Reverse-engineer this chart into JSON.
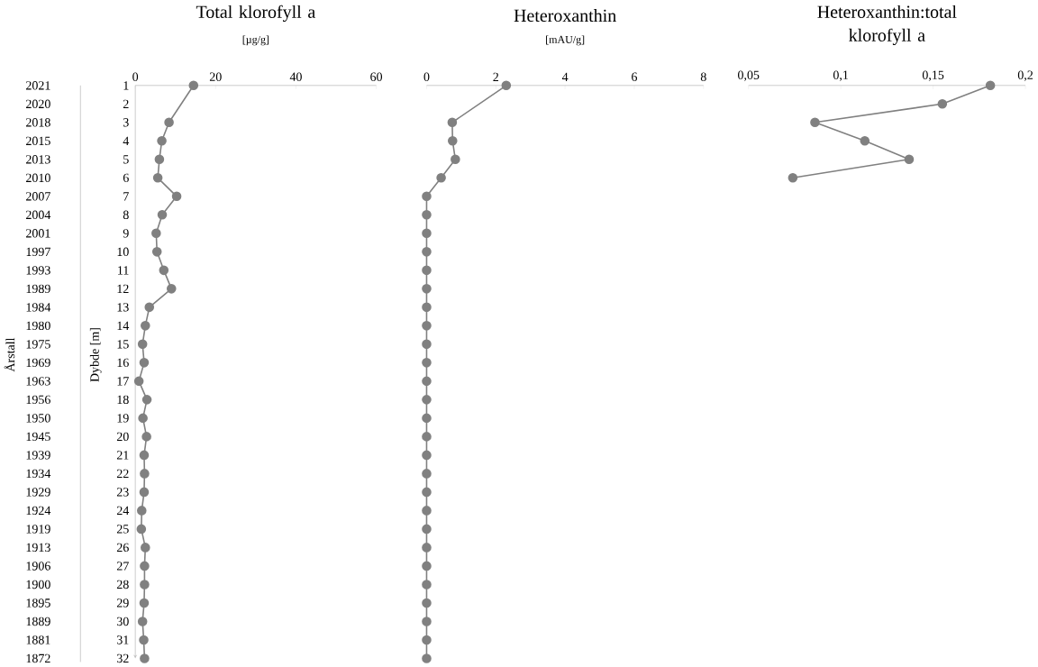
{
  "chart_data": [
    {
      "type": "line",
      "orientation": "horizontal",
      "title": "Total klorofyll a",
      "subtitle": "[µg/g]",
      "ylabel": "Dybde [m]",
      "y2label": "Årstall",
      "categories": [
        "1",
        "2",
        "3",
        "4",
        "5",
        "6",
        "7",
        "8",
        "9",
        "10",
        "11",
        "12",
        "13",
        "14",
        "15",
        "16",
        "17",
        "18",
        "19",
        "20",
        "21",
        "22",
        "23",
        "24",
        "25",
        "26",
        "27",
        "28",
        "29",
        "30",
        "31",
        "32"
      ],
      "y2_categories": [
        "2021",
        "2020",
        "2018",
        "2015",
        "2013",
        "2010",
        "2007",
        "2004",
        "2001",
        "1997",
        "1993",
        "1989",
        "1984",
        "1980",
        "1975",
        "1969",
        "1963",
        "1956",
        "1950",
        "1945",
        "1939",
        "1934",
        "1929",
        "1924",
        "1919",
        "1913",
        "1906",
        "1900",
        "1895",
        "1889",
        "1881",
        "1872"
      ],
      "values": [
        14.5,
        null,
        8.4,
        6.6,
        6.0,
        5.6,
        10.3,
        6.7,
        5.2,
        5.4,
        7.1,
        9.0,
        3.5,
        2.5,
        1.8,
        2.2,
        0.9,
        2.9,
        1.9,
        2.8,
        2.2,
        2.3,
        2.2,
        1.6,
        1.5,
        2.5,
        2.3,
        2.3,
        2.2,
        1.8,
        2.1,
        2.3
      ],
      "color": "#808080",
      "marker": "circle",
      "line_style": "solid",
      "xlim": [
        0,
        60
      ],
      "xticks": [
        0,
        20,
        40,
        60
      ]
    },
    {
      "type": "line",
      "orientation": "horizontal",
      "title": "Heteroxanthin",
      "subtitle": "[mAU/g]",
      "tick_labels": "x",
      "categories": [
        "1",
        "2",
        "3",
        "4",
        "5",
        "6",
        "7",
        "8",
        "9",
        "10",
        "11",
        "12",
        "13",
        "14",
        "15",
        "16",
        "17",
        "18",
        "19",
        "20",
        "21",
        "22",
        "23",
        "24",
        "25",
        "26",
        "27",
        "28",
        "29",
        "30",
        "31",
        "32"
      ],
      "values": [
        2.3,
        null,
        0.74,
        0.75,
        0.83,
        0.42,
        0,
        0,
        0,
        0,
        0,
        0,
        0,
        0,
        0,
        0,
        0,
        0,
        0,
        0,
        0,
        0,
        0,
        0,
        0,
        0,
        0,
        0,
        0,
        0,
        0,
        0
      ],
      "color": "#808080",
      "marker": "circle",
      "line_style": "solid",
      "xlim": [
        0,
        8
      ],
      "xticks": [
        0,
        2,
        4,
        6,
        8
      ]
    },
    {
      "type": "line",
      "orientation": "horizontal",
      "title": "Heteroxanthin:total klorofyll a",
      "tick_labels": "x",
      "categories": [
        "1",
        "2",
        "3",
        "4",
        "5",
        "6",
        "7",
        "8",
        "9",
        "10",
        "11",
        "12",
        "13",
        "14",
        "15",
        "16",
        "17",
        "18",
        "19",
        "20",
        "21",
        "22",
        "23",
        "24",
        "25",
        "26",
        "27",
        "28",
        "29",
        "30",
        "31",
        "32"
      ],
      "values": [
        0.181,
        0.155,
        0.086,
        0.113,
        0.137,
        0.074,
        null,
        null,
        null,
        null,
        null,
        null,
        null,
        null,
        null,
        null,
        null,
        null,
        null,
        null,
        null,
        null,
        null,
        null,
        null,
        null,
        null,
        null,
        null,
        null,
        null,
        null
      ],
      "color": "#808080",
      "marker": "circle",
      "line_style": "solid",
      "xlim": [
        0.05,
        0.2
      ],
      "xticks": [
        {
          "value": 0.05,
          "label": "0,05"
        },
        {
          "value": 0.1,
          "label": "0,1"
        },
        {
          "value": 0.15,
          "label": "0,15"
        },
        {
          "value": 0.2,
          "label": "0,2"
        }
      ]
    }
  ]
}
